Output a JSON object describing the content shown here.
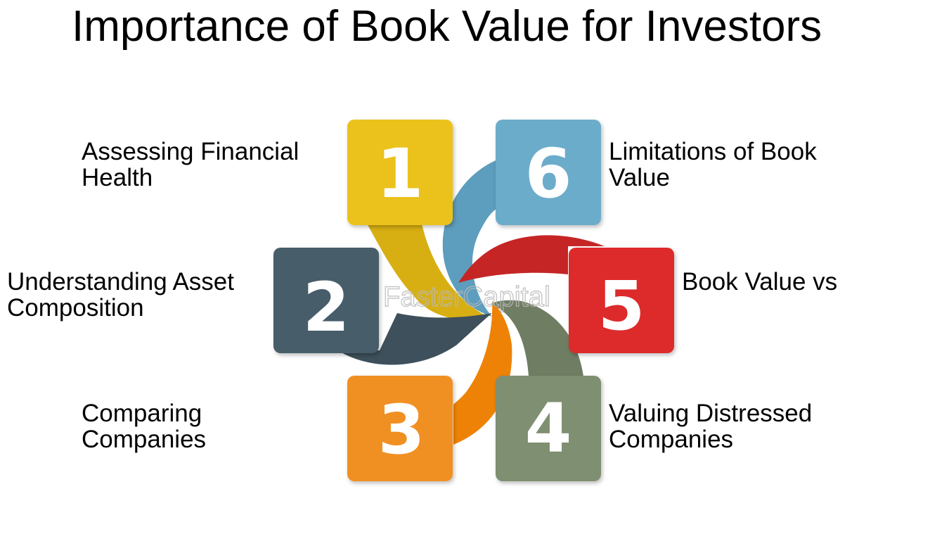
{
  "title": "Importance of Book Value for Investors",
  "watermark": "FasterCapital",
  "steps": [
    {
      "number": "1",
      "lines": [
        "Assessing Financial",
        "Health"
      ],
      "color": "#EBC21A"
    },
    {
      "number": "2",
      "lines": [
        "Understanding Asset",
        "Composition"
      ],
      "color": "#465D6A"
    },
    {
      "number": "3",
      "lines": [
        "Comparing",
        "Companies"
      ],
      "color": "#F19023"
    },
    {
      "number": "4",
      "lines": [
        "Valuing Distressed",
        "Companies"
      ],
      "color": "#7F8F71"
    },
    {
      "number": "5",
      "lines": [
        "Book Value vs"
      ],
      "color": "#DD2A2A"
    },
    {
      "number": "6",
      "lines": [
        "Limitations of Book",
        "Value"
      ],
      "color": "#6CACCB"
    }
  ]
}
